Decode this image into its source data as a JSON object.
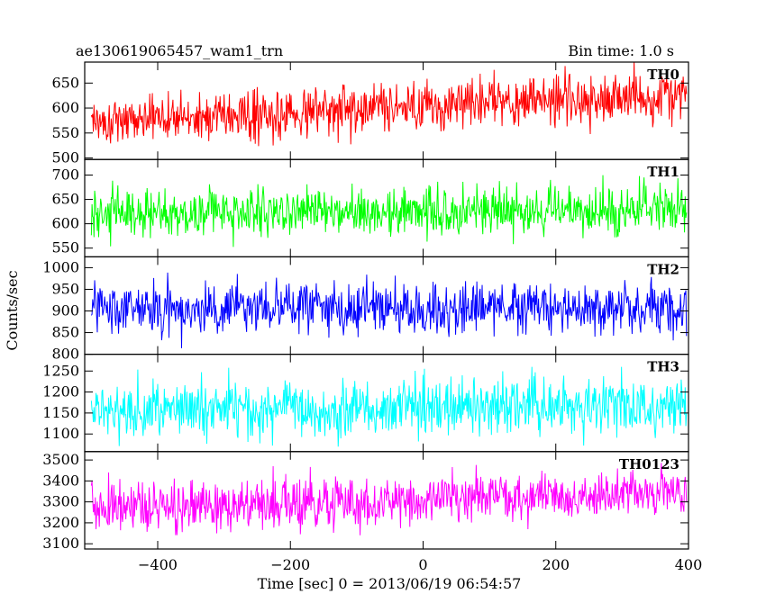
{
  "header": {
    "title": "ae130619065457_wam1_trn",
    "bin_time": "Bin time: 1.0 s"
  },
  "chart_data": {
    "type": "line",
    "xlabel": "Time [sec] 0 = 2013/06/19 06:54:57",
    "ylabel": "Counts/sec",
    "xlim": [
      -510,
      400
    ],
    "x_ticks": [
      -400,
      -200,
      0,
      200,
      400
    ],
    "x_tick_labels": [
      "−400",
      "−200",
      "0",
      "200",
      "400"
    ],
    "x_start": -500,
    "x_end": 397,
    "bin": 1.0,
    "grid": false,
    "panels": [
      {
        "label": "TH0",
        "color": "#ff0000",
        "ylim": [
          497,
          692
        ],
        "y_ticks": [
          500,
          550,
          600,
          650
        ],
        "trend_start": 575,
        "trend_end": 628,
        "noise_sd": 24
      },
      {
        "label": "TH1",
        "color": "#00ff00",
        "ylim": [
          532,
          732
        ],
        "y_ticks": [
          550,
          600,
          650,
          700
        ],
        "trend_start": 622,
        "trend_end": 627,
        "noise_sd": 25
      },
      {
        "label": "TH2",
        "color": "#0000ff",
        "ylim": [
          800,
          1025
        ],
        "y_ticks": [
          800,
          850,
          900,
          950,
          1000
        ],
        "trend_start": 908,
        "trend_end": 902,
        "noise_sd": 29
      },
      {
        "label": "TH3",
        "color": "#00ffff",
        "ylim": [
          1058,
          1290
        ],
        "y_ticks": [
          1100,
          1150,
          1200,
          1250
        ],
        "trend_start": 1160,
        "trend_end": 1168,
        "noise_sd": 34
      },
      {
        "label": "TH0123",
        "color": "#ff00ff",
        "ylim": [
          3075,
          3540
        ],
        "y_ticks": [
          3100,
          3200,
          3300,
          3400,
          3500
        ],
        "trend_start": 3272,
        "trend_end": 3340,
        "noise_sd": 60
      }
    ]
  }
}
